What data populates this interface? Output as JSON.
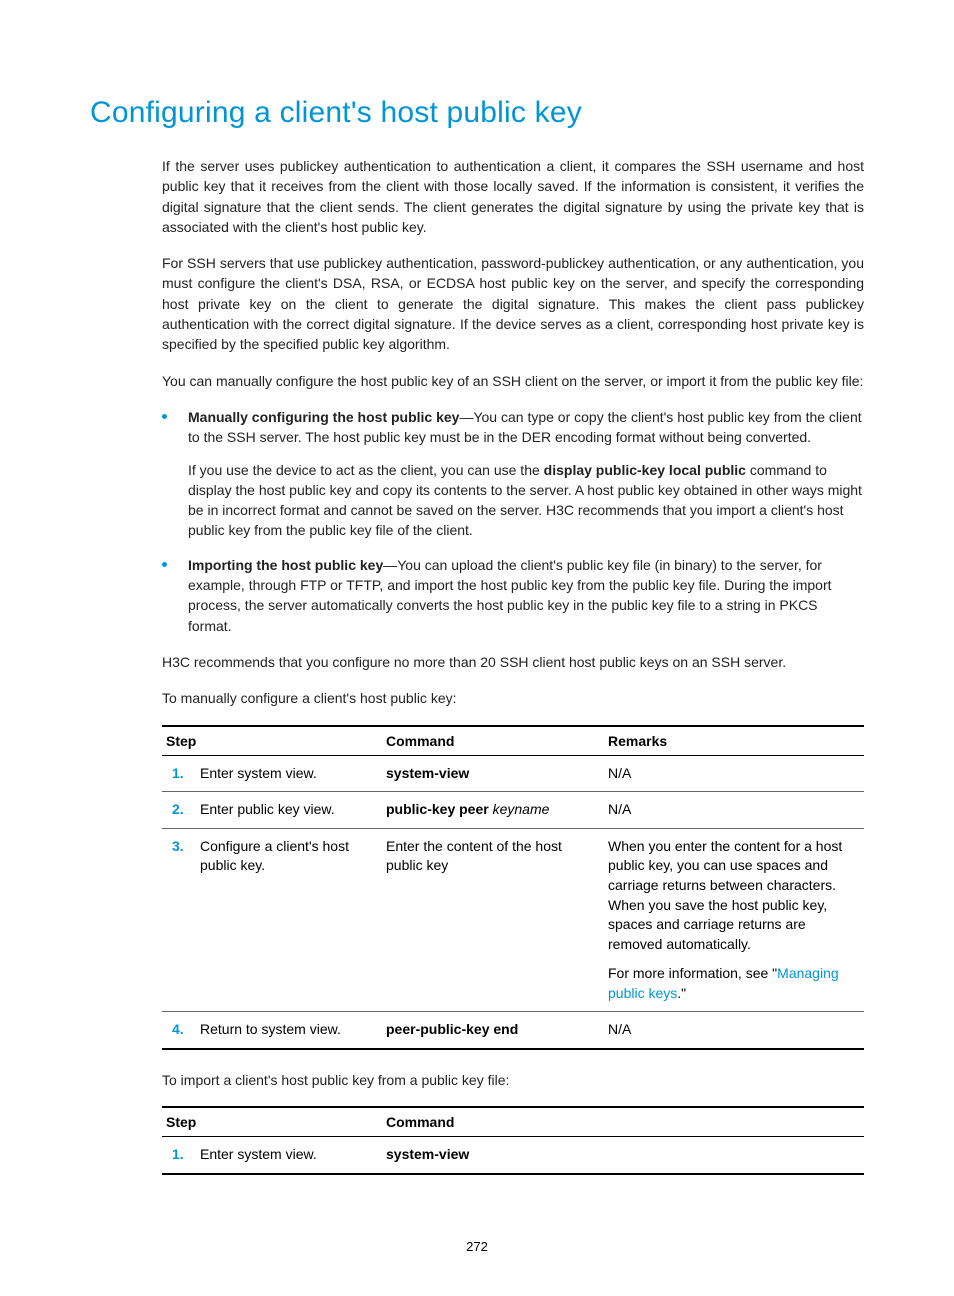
{
  "heading": "Configuring a client's host public key",
  "page_number": "272",
  "colors": {
    "accent": "#0096d6",
    "text": "#222222",
    "rule": "#000000",
    "rule_light": "#666666",
    "background": "#ffffff"
  },
  "paragraphs": {
    "p1": "If the server uses publickey authentication to authentication a client, it compares the SSH username and host public key that it receives from the client with those locally saved. If the information is consistent, it verifies the digital signature that the client sends. The client generates the digital signature by using the private key that is associated with the client's host public key.",
    "p2": "For SSH servers that use publickey authentication, password-publickey authentication, or any authentication, you must configure the client's DSA, RSA, or ECDSA host public key on the server, and specify the corresponding host private key on the client to generate the digital signature. This makes the client pass publickey authentication with the correct digital signature. If the device serves as a client, corresponding host private key is specified by the specified public key algorithm.",
    "p3": "You can manually configure the host public key of an SSH client on the server, or import it from the public key file:",
    "p4": "H3C recommends that you configure no more than 20 SSH client host public keys on an SSH server.",
    "p5": "To manually configure a client's host public key:",
    "p6": "To import a client's host public key from a public key file:"
  },
  "bullets": [
    {
      "lead_bold": "Manually configuring the host public key",
      "lead_rest": "—You can type or copy the client's host public key from the client to the SSH server. The host public key must be in the DER encoding format without being converted.",
      "sub_pre": "If you use the device to act as the client, you can use the ",
      "sub_bold": "display public-key local public",
      "sub_post": " command to display the host public key and copy its contents to the server. A host public key obtained in other ways might be in incorrect format and cannot be saved on the server. H3C recommends that you import a client's host public key from the public key file of the client."
    },
    {
      "lead_bold": "Importing the host public key",
      "lead_rest": "—You can upload the client's public key file (in binary) to the server, for example, through FTP or TFTP, and import the host public key from the public key file. During the import process, the server automatically converts the host public key in the public key file to a string in PKCS format.",
      "sub_pre": "",
      "sub_bold": "",
      "sub_post": ""
    }
  ],
  "table1": {
    "headers": {
      "step": "Step",
      "command": "Command",
      "remarks": "Remarks"
    },
    "rows": [
      {
        "num": "1.",
        "step": "Enter system view.",
        "cmd_bold": "system-view",
        "cmd_italic": "",
        "remarks_a": "N/A",
        "remarks_b_pre": "",
        "remarks_b_link": "",
        "remarks_b_post": ""
      },
      {
        "num": "2.",
        "step": "Enter public key view.",
        "cmd_bold": "public-key peer ",
        "cmd_italic": "keyname",
        "remarks_a": "N/A",
        "remarks_b_pre": "",
        "remarks_b_link": "",
        "remarks_b_post": ""
      },
      {
        "num": "3.",
        "step": "Configure a client's host public key.",
        "cmd_bold": "",
        "cmd_italic": "",
        "cmd_plain": "Enter the content of the host public key",
        "remarks_a": "When you enter the content for a host public key, you can use spaces and carriage returns between characters. When you save the host public key, spaces and carriage returns are removed automatically.",
        "remarks_b_pre": "For more information, see \"",
        "remarks_b_link": "Managing public keys",
        "remarks_b_post": ".\""
      },
      {
        "num": "4.",
        "step": "Return to system view.",
        "cmd_bold": "peer-public-key end",
        "cmd_italic": "",
        "remarks_a": "N/A",
        "remarks_b_pre": "",
        "remarks_b_link": "",
        "remarks_b_post": ""
      }
    ]
  },
  "table2": {
    "headers": {
      "step": "Step",
      "command": "Command"
    },
    "rows": [
      {
        "num": "1.",
        "step": "Enter system view.",
        "cmd_bold": "system-view"
      }
    ]
  }
}
